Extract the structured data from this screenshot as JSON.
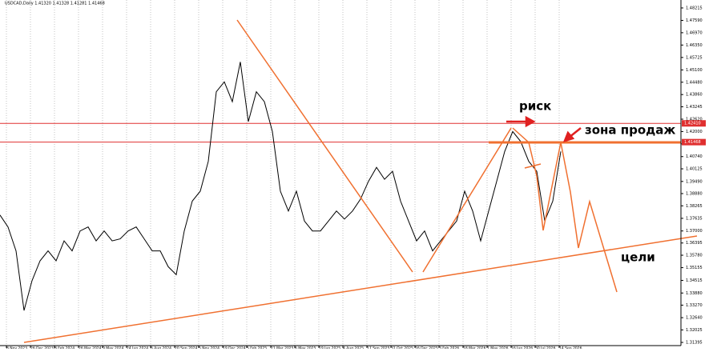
{
  "chart_data": {
    "type": "line",
    "title": "USDCAD,Daily 1.41320 1.41328 1.41281 1.41468",
    "series": [
      {
        "name": "USDCAD",
        "color": "#000000",
        "values": [
          1.378,
          1.372,
          1.36,
          1.33,
          1.345,
          1.355,
          1.36,
          1.355,
          1.365,
          1.36,
          1.37,
          1.372,
          1.365,
          1.37,
          1.365,
          1.366,
          1.37,
          1.372,
          1.366,
          1.36,
          1.36,
          1.352,
          1.348,
          1.37,
          1.385,
          1.39,
          1.405,
          1.44,
          1.445,
          1.435,
          1.455,
          1.425,
          1.44,
          1.435,
          1.42,
          1.39,
          1.38,
          1.39,
          1.375,
          1.37,
          1.37,
          1.375,
          1.38,
          1.376,
          1.38,
          1.386,
          1.395,
          1.402,
          1.396,
          1.4,
          1.385,
          1.375,
          1.365,
          1.37,
          1.36,
          1.365,
          1.37,
          1.375,
          1.39,
          1.38,
          1.365,
          1.38,
          1.395,
          1.41,
          1.42,
          1.415,
          1.405,
          1.4,
          1.375,
          1.385,
          1.41
        ]
      }
    ],
    "xlim": [
      0,
      85
    ],
    "xticks": [
      {
        "value": 0.8,
        "label": "8 Nov 2023"
      },
      {
        "value": 3.8,
        "label": "26 Dec 2023"
      },
      {
        "value": 6.8,
        "label": "8 Feb 2024"
      },
      {
        "value": 9.8,
        "label": "26 Mar 2024"
      },
      {
        "value": 12.8,
        "label": "9 May 2024"
      },
      {
        "value": 15.8,
        "label": "24 Jun 2024"
      },
      {
        "value": 18.8,
        "label": "6 Aug 2024"
      },
      {
        "value": 21.8,
        "label": "20 Sep 2024"
      },
      {
        "value": 24.8,
        "label": "5 Nov 2024"
      },
      {
        "value": 27.8,
        "label": "19 Dec 2024"
      },
      {
        "value": 30.8,
        "label": "5 Feb 2025"
      },
      {
        "value": 33.8,
        "label": "21 Mar 2025"
      },
      {
        "value": 36.8,
        "label": "6 May 2025"
      },
      {
        "value": 39.8,
        "label": "19 Jun 2025"
      },
      {
        "value": 42.8,
        "label": "4 Aug 2025"
      },
      {
        "value": 45.8,
        "label": "17 Sep 2025"
      },
      {
        "value": 48.8,
        "label": "31 Oct 2025"
      },
      {
        "value": 51.8,
        "label": "16 Dec 2025"
      },
      {
        "value": 54.8,
        "label": "3 Feb 2026"
      },
      {
        "value": 57.8,
        "label": "18 Mar 2026"
      },
      {
        "value": 60.8,
        "label": "1 May 2026"
      },
      {
        "value": 63.8,
        "label": "16 Jun 2026"
      },
      {
        "value": 66.8,
        "label": "30 Jul 2026"
      },
      {
        "value": 69.8,
        "label": "14 Sep 2026"
      }
    ],
    "ylim": [
      1.31235,
      1.48615
    ],
    "yticks": [
      {
        "value": 1.48215,
        "label": "1.48215"
      },
      {
        "value": 1.4759,
        "label": "1.47590"
      },
      {
        "value": 1.4697,
        "label": "1.46970"
      },
      {
        "value": 1.4635,
        "label": "1.46350"
      },
      {
        "value": 1.45725,
        "label": "1.45725"
      },
      {
        "value": 1.451,
        "label": "1.45100"
      },
      {
        "value": 1.4448,
        "label": "1.44480"
      },
      {
        "value": 1.4386,
        "label": "1.43860"
      },
      {
        "value": 1.43245,
        "label": "1.43245"
      },
      {
        "value": 1.4262,
        "label": "1.42620"
      },
      {
        "value": 1.42,
        "label": "1.42000"
      },
      {
        "value": 1.4138,
        "label": "1.41380"
      },
      {
        "value": 1.4074,
        "label": "1.40740"
      },
      {
        "value": 1.40125,
        "label": "1.40125"
      },
      {
        "value": 1.3949,
        "label": "1.39490"
      },
      {
        "value": 1.3888,
        "label": "1.38880"
      },
      {
        "value": 1.38265,
        "label": "1.38265"
      },
      {
        "value": 1.37635,
        "label": "1.37635"
      },
      {
        "value": 1.37,
        "label": "1.37000"
      },
      {
        "value": 1.36395,
        "label": "1.36395"
      },
      {
        "value": 1.3578,
        "label": "1.35780"
      },
      {
        "value": 1.35155,
        "label": "1.35155"
      },
      {
        "value": 1.34515,
        "label": "1.34515"
      },
      {
        "value": 1.3388,
        "label": "1.33880"
      },
      {
        "value": 1.3327,
        "label": "1.33270"
      },
      {
        "value": 1.3264,
        "label": "1.32640"
      },
      {
        "value": 1.32025,
        "label": "1.32025"
      },
      {
        "value": 1.31395,
        "label": "1.31395"
      }
    ],
    "levels": [
      {
        "value": 1.4241,
        "label": "1.42410",
        "color": "#e03030"
      },
      {
        "value": 1.41468,
        "label": "1.41468",
        "color": "#e03030"
      }
    ],
    "annotations": [
      "риск",
      "зона продаж",
      "цели"
    ],
    "grid": true
  }
}
